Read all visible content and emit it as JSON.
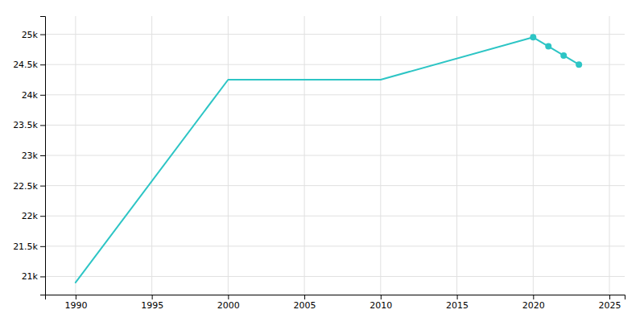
{
  "chart_data": {
    "type": "line",
    "x": [
      1990,
      2000,
      2010,
      2020,
      2021,
      2022,
      2023
    ],
    "series": [
      {
        "type": "line",
        "color": "#2dc5c5",
        "values": [
          20900,
          24250,
          24250,
          24950,
          24800,
          24650,
          24500
        ]
      },
      {
        "type": "scatter",
        "marker": "circle",
        "color": "#2dc5c5",
        "values": [
          null,
          null,
          null,
          24950,
          24800,
          24650,
          24500
        ]
      }
    ],
    "xlim": [
      1988,
      2026
    ],
    "xticks": [
      1990,
      1995,
      2000,
      2005,
      2010,
      2015,
      2020,
      2025
    ],
    "ylim": [
      20700,
      25300
    ],
    "yticks": [
      {
        "value": 21000,
        "label": "21k"
      },
      {
        "value": 21500,
        "label": "21.5k"
      },
      {
        "value": 22000,
        "label": "22k"
      },
      {
        "value": 22500,
        "label": "22.5k"
      },
      {
        "value": 23000,
        "label": "23k"
      },
      {
        "value": 23500,
        "label": "23.5k"
      },
      {
        "value": 24000,
        "label": "24k"
      },
      {
        "value": 24500,
        "label": "24.5k"
      },
      {
        "value": 25000,
        "label": "25k"
      }
    ],
    "grid": true
  }
}
